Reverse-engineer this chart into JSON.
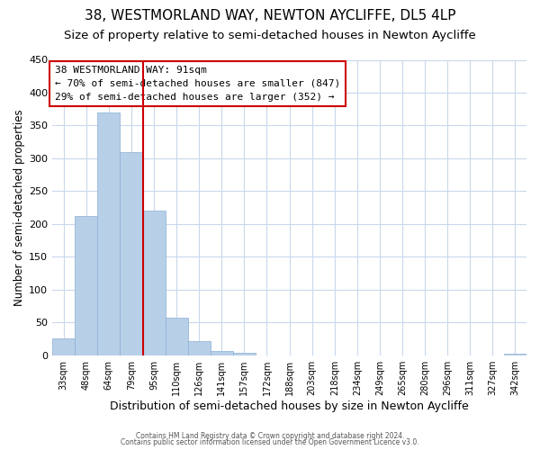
{
  "title": "38, WESTMORLAND WAY, NEWTON AYCLIFFE, DL5 4LP",
  "subtitle": "Size of property relative to semi-detached houses in Newton Aycliffe",
  "xlabel": "Distribution of semi-detached houses by size in Newton Aycliffe",
  "ylabel": "Number of semi-detached properties",
  "bar_labels": [
    "33sqm",
    "48sqm",
    "64sqm",
    "79sqm",
    "95sqm",
    "110sqm",
    "126sqm",
    "141sqm",
    "157sqm",
    "172sqm",
    "188sqm",
    "203sqm",
    "218sqm",
    "234sqm",
    "249sqm",
    "265sqm",
    "280sqm",
    "296sqm",
    "311sqm",
    "327sqm",
    "342sqm"
  ],
  "bar_values": [
    25,
    212,
    370,
    310,
    220,
    57,
    22,
    7,
    4,
    0,
    0,
    0,
    0,
    0,
    0,
    0,
    0,
    0,
    0,
    0,
    2
  ],
  "bar_color": "#b8cfe8",
  "bar_edge_color": "#8aafd4",
  "vline_x": 3.5,
  "vline_color": "#cc0000",
  "annotation_title": "38 WESTMORLAND WAY: 91sqm",
  "annotation_line1": "← 70% of semi-detached houses are smaller (847)",
  "annotation_line2": "29% of semi-detached houses are larger (352) →",
  "ylim": [
    0,
    450
  ],
  "yticks": [
    0,
    50,
    100,
    150,
    200,
    250,
    300,
    350,
    400,
    450
  ],
  "footer1": "Contains HM Land Registry data © Crown copyright and database right 2024.",
  "footer2": "Contains public sector information licensed under the Open Government Licence v3.0.",
  "title_fontsize": 11,
  "subtitle_fontsize": 9.5,
  "ylabel_fontsize": 8.5,
  "xlabel_fontsize": 9,
  "background_color": "#ffffff",
  "grid_color": "#c8d8ec"
}
